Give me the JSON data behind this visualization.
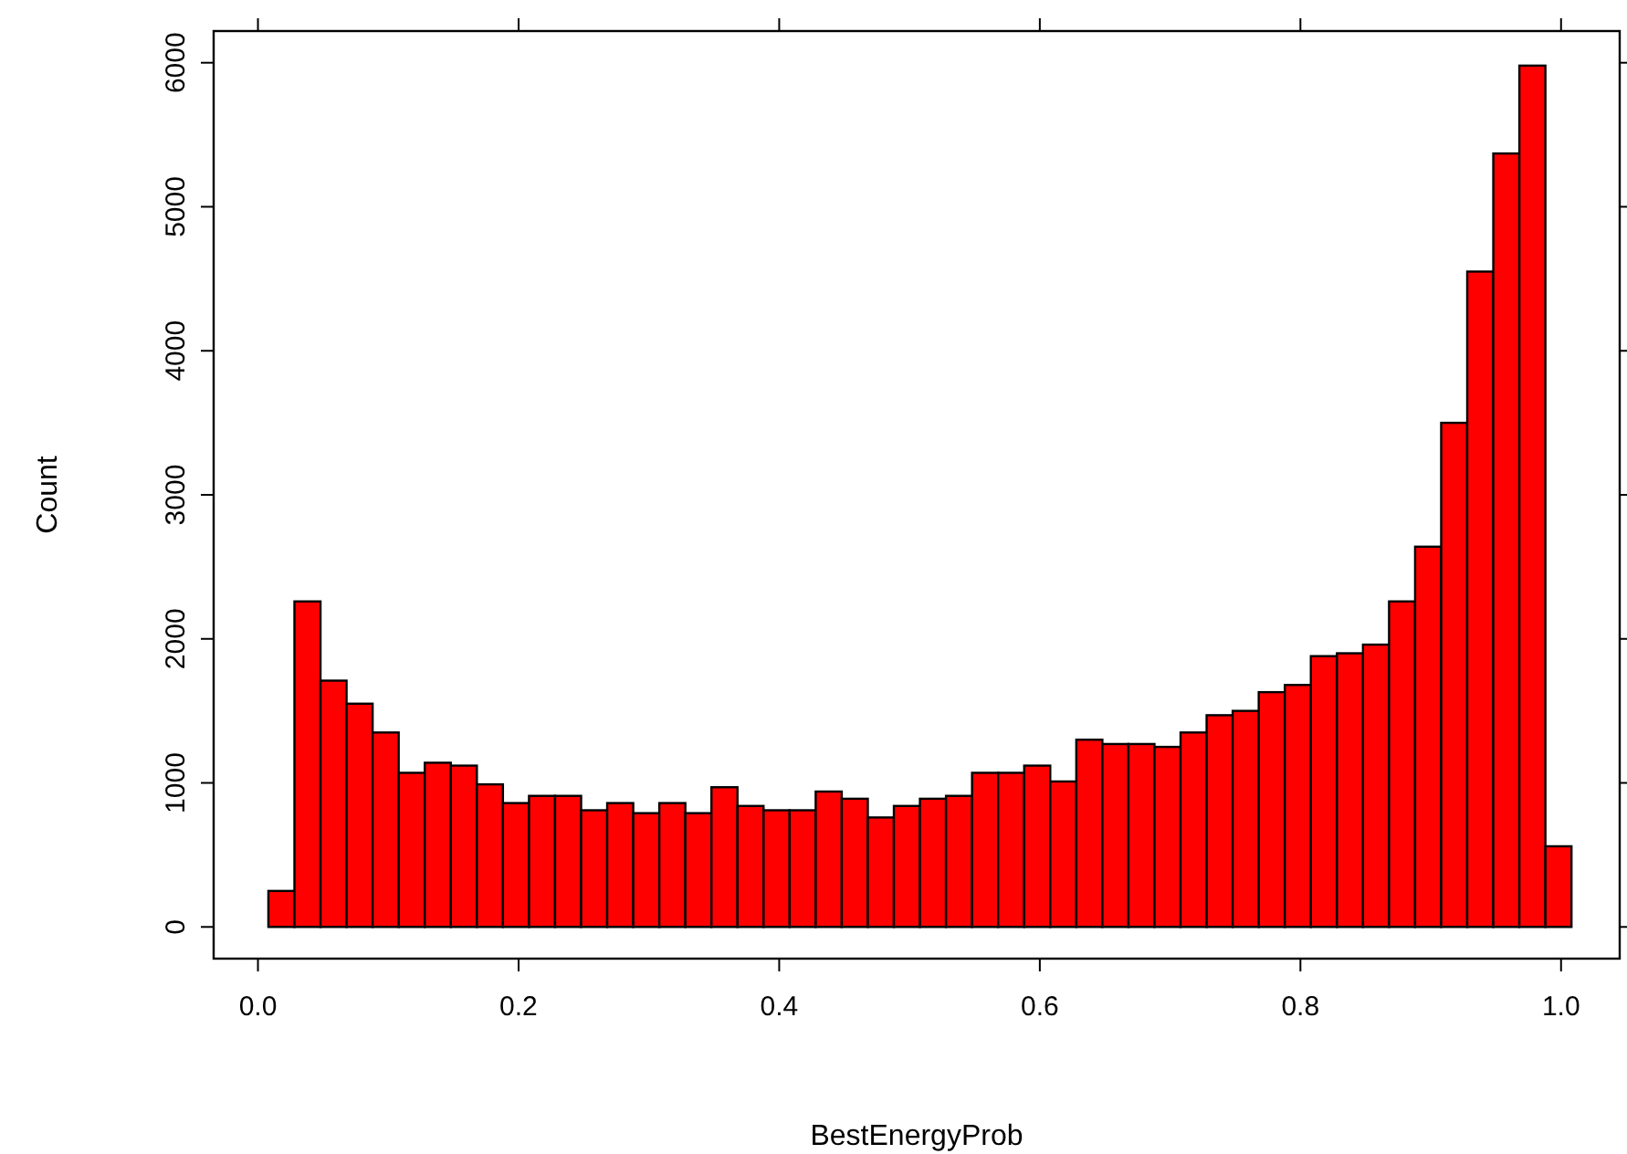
{
  "chart_data": {
    "type": "histogram",
    "xlabel": "BestEnergyProb",
    "ylabel": "Count",
    "color": "#ff0000",
    "bins": [
      0.008,
      0.028,
      0.048,
      0.068,
      0.088,
      0.108,
      0.128,
      0.148,
      0.168,
      0.188,
      0.208,
      0.228,
      0.248,
      0.268,
      0.288,
      0.308,
      0.328,
      0.348,
      0.368,
      0.388,
      0.408,
      0.428,
      0.448,
      0.468,
      0.488,
      0.508,
      0.528,
      0.548,
      0.568,
      0.588,
      0.608,
      0.628,
      0.648,
      0.668,
      0.688,
      0.708,
      0.728,
      0.748,
      0.768,
      0.788,
      0.808,
      0.828,
      0.848,
      0.868,
      0.888,
      0.908,
      0.928,
      0.948,
      0.968,
      0.988,
      1.008
    ],
    "values": [
      250,
      2260,
      1710,
      1550,
      1350,
      1070,
      1140,
      1120,
      990,
      860,
      910,
      910,
      810,
      860,
      790,
      860,
      790,
      970,
      840,
      810,
      810,
      940,
      890,
      760,
      840,
      890,
      910,
      1070,
      1070,
      1120,
      1010,
      1300,
      1270,
      1270,
      1250,
      1350,
      1470,
      1500,
      1630,
      1680,
      1880,
      1900,
      1960,
      2260,
      2640,
      3500,
      4550,
      5370,
      5980,
      560
    ],
    "xlim": [
      -0.034,
      1.045
    ],
    "ylim": [
      -220,
      6220
    ],
    "xticks": [
      {
        "value": 0,
        "label": "0.0"
      },
      0.2,
      0.4,
      0.6,
      0.8,
      {
        "value": 1,
        "label": "1.0"
      }
    ],
    "yticks": [
      0,
      1000,
      2000,
      3000,
      4000,
      5000,
      6000
    ],
    "grid": false
  }
}
